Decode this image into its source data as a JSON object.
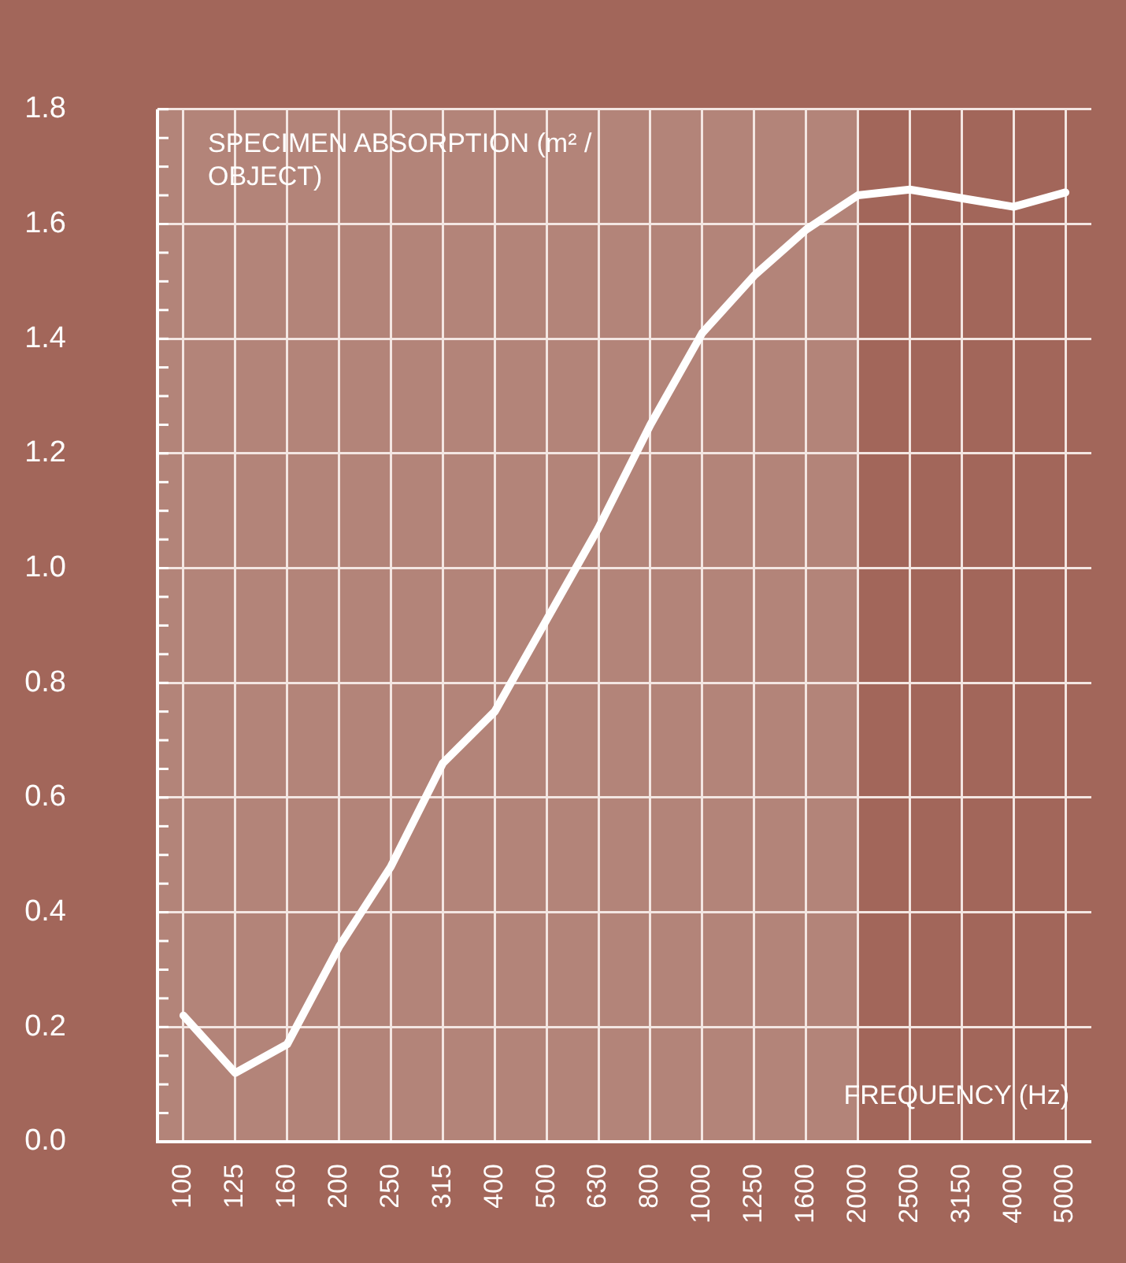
{
  "chart_data": {
    "type": "line",
    "ylabel": "SPECIMEN ABSORPTION (m² / OBJECT)",
    "xlabel": "FREQUENCY (Hz)",
    "categories": [
      "100",
      "125",
      "160",
      "200",
      "250",
      "315",
      "400",
      "500",
      "630",
      "800",
      "1000",
      "1250",
      "1600",
      "2000",
      "2500",
      "3150",
      "4000",
      "5000"
    ],
    "series": [
      {
        "color": "#ffffff",
        "values": [
          0.22,
          0.12,
          0.17,
          0.34,
          0.48,
          0.66,
          0.75,
          0.91,
          1.07,
          1.25,
          1.41,
          1.51,
          1.59,
          1.65,
          1.66,
          1.645,
          1.63,
          1.655
        ]
      }
    ],
    "ylim": [
      0,
      1.8
    ],
    "yticks": [
      {
        "value": 0,
        "label": "0.0"
      },
      {
        "value": 0.05,
        "label": null
      },
      {
        "value": 0.1,
        "label": null
      },
      {
        "value": 0.15,
        "label": null
      },
      0.2,
      {
        "value": 0.25,
        "label": null
      },
      {
        "value": 0.3,
        "label": null
      },
      {
        "value": 0.35,
        "label": null
      },
      0.4,
      {
        "value": 0.45,
        "label": null
      },
      {
        "value": 0.5,
        "label": null
      },
      {
        "value": 0.55,
        "label": null
      },
      0.6,
      {
        "value": 0.65,
        "label": null
      },
      {
        "value": 0.7,
        "label": null
      },
      {
        "value": 0.75,
        "label": null
      },
      0.8,
      {
        "value": 0.85,
        "label": null
      },
      {
        "value": 0.9,
        "label": null
      },
      {
        "value": 0.95,
        "label": null
      },
      {
        "value": 1,
        "label": "1.0"
      },
      {
        "value": 1.05,
        "label": null
      },
      {
        "value": 1.1,
        "label": null
      },
      {
        "value": 1.15,
        "label": null
      },
      1.2,
      {
        "value": 1.25,
        "label": null
      },
      {
        "value": 1.3,
        "label": null
      },
      {
        "value": 1.35,
        "label": null
      },
      1.4,
      {
        "value": 1.45,
        "label": null
      },
      {
        "value": 1.5,
        "label": null
      },
      {
        "value": 1.55,
        "label": null
      },
      1.6,
      {
        "value": 1.65,
        "label": null
      },
      {
        "value": 1.7,
        "label": null
      },
      {
        "value": 1.75,
        "label": null
      },
      1.8
    ],
    "bands": [
      {
        "axis": "x",
        "from": "100",
        "to": "2000",
        "color": "#b38479"
      }
    ],
    "grid": true,
    "legend": false,
    "marker": "none",
    "line_style": "solid"
  }
}
